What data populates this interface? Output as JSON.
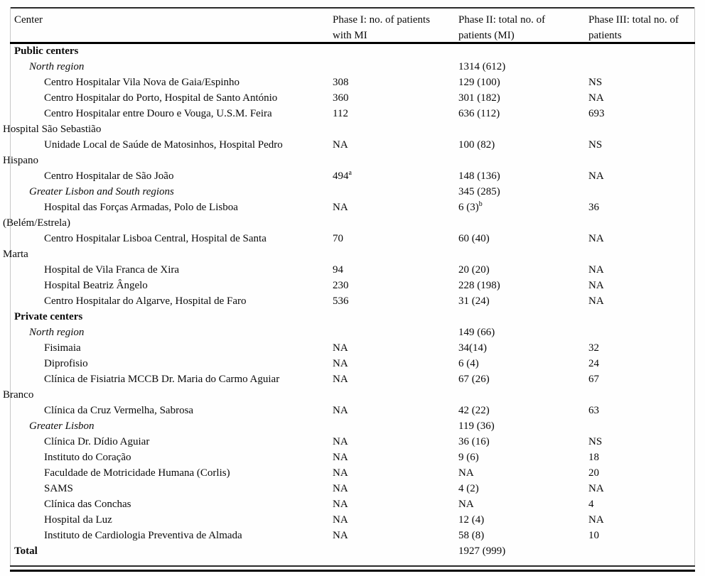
{
  "table": {
    "columns": [
      [
        "Center"
      ],
      [
        "Phase I: no. of patients",
        "with MI"
      ],
      [
        "Phase II: total no. of",
        "patients (MI)"
      ],
      [
        "Phase III: total no. of",
        "patients"
      ]
    ],
    "rows": [
      {
        "type": "section",
        "name_lines": [
          "Public centers"
        ]
      },
      {
        "type": "region",
        "name_lines": [
          "North region"
        ],
        "p2": "1314 (612)"
      },
      {
        "type": "center",
        "name_lines": [
          "Centro Hospitalar Vila Nova de Gaia/Espinho"
        ],
        "p1": "308",
        "p2": "129 (100)",
        "p3": "NS"
      },
      {
        "type": "center",
        "name_lines": [
          "Centro Hospitalar do Porto, Hospital de Santo António"
        ],
        "p1": "360",
        "p2": "301 (182)",
        "p3": "NA"
      },
      {
        "type": "center",
        "name_lines": [
          "Centro Hospitalar entre Douro e Vouga, U.S.M. Feira",
          "Hospital São Sebastião"
        ],
        "p1": "112",
        "p2": "636 (112)",
        "p3": "693"
      },
      {
        "type": "center",
        "name_lines": [
          "Unidade Local de Saúde de Matosinhos, Hospital Pedro",
          "Hispano"
        ],
        "p1": "NA",
        "p2": "100 (82)",
        "p3": "NS"
      },
      {
        "type": "center",
        "name_lines": [
          "Centro Hospitalar de São João"
        ],
        "p1": "494",
        "p1_sup": "a",
        "p2": "148 (136)",
        "p3": "NA"
      },
      {
        "type": "region",
        "name_lines": [
          "Greater Lisbon and South regions"
        ],
        "p2": "345 (285)"
      },
      {
        "type": "center",
        "name_lines": [
          "Hospital das Forças Armadas, Polo de Lisboa",
          "(Belém/Estrela)"
        ],
        "p1": "NA",
        "p2": "6 (3)",
        "p2_sup": "b",
        "p3": "36"
      },
      {
        "type": "center",
        "name_lines": [
          "Centro Hospitalar Lisboa Central, Hospital de Santa",
          "Marta"
        ],
        "p1": "70",
        "p2": "60 (40)",
        "p3": "NA"
      },
      {
        "type": "center",
        "name_lines": [
          "Hospital de Vila Franca de Xira"
        ],
        "p1": "94",
        "p2": "20 (20)",
        "p3": "NA"
      },
      {
        "type": "center",
        "name_lines": [
          "Hospital Beatriz Ângelo"
        ],
        "p1": "230",
        "p2": "228 (198)",
        "p3": "NA"
      },
      {
        "type": "center",
        "name_lines": [
          "Centro Hospitalar do Algarve, Hospital de Faro"
        ],
        "p1": "536",
        "p2": "31 (24)",
        "p3": "NA"
      },
      {
        "type": "section",
        "name_lines": [
          "Private centers"
        ]
      },
      {
        "type": "region",
        "name_lines": [
          "North region"
        ],
        "p2": "149 (66)"
      },
      {
        "type": "center",
        "name_lines": [
          "Fisimaia"
        ],
        "p1": "NA",
        "p2": "34(14)",
        "p3": "32"
      },
      {
        "type": "center",
        "name_lines": [
          "Diprofisio"
        ],
        "p1": "NA",
        "p2": "6 (4)",
        "p3": "24"
      },
      {
        "type": "center",
        "name_lines": [
          "Clínica de Fisiatria MCCB Dr. Maria do Carmo Aguiar",
          "Branco"
        ],
        "p1": "NA",
        "p2": "67 (26)",
        "p3": "67"
      },
      {
        "type": "center",
        "name_lines": [
          "Clínica da Cruz Vermelha, Sabrosa"
        ],
        "p1": "NA",
        "p2": "42 (22)",
        "p3": "63"
      },
      {
        "type": "region",
        "name_lines": [
          "Greater Lisbon"
        ],
        "p2": "119 (36)"
      },
      {
        "type": "center",
        "name_lines": [
          "Clínica Dr. Dídio Aguiar"
        ],
        "p1": "NA",
        "p2": "36 (16)",
        "p3": "NS"
      },
      {
        "type": "center",
        "name_lines": [
          "Instituto do Coração"
        ],
        "p1": "NA",
        "p2": "9 (6)",
        "p3": "18"
      },
      {
        "type": "center",
        "name_lines": [
          "Faculdade de Motricidade Humana (Corlis)"
        ],
        "p1": "NA",
        "p2": "NA",
        "p3": "20"
      },
      {
        "type": "center",
        "name_lines": [
          "SAMS"
        ],
        "p1": "NA",
        "p2": "4 (2)",
        "p3": "NA"
      },
      {
        "type": "center",
        "name_lines": [
          "Clínica das Conchas"
        ],
        "p1": "NA",
        "p2": "NA",
        "p3": "4"
      },
      {
        "type": "center",
        "name_lines": [
          "Hospital da Luz"
        ],
        "p1": "NA",
        "p2": "12 (4)",
        "p3": "NA"
      },
      {
        "type": "center",
        "name_lines": [
          "Instituto de Cardiologia Preventiva de Almada"
        ],
        "p1": "NA",
        "p2": "58 (8)",
        "p3": "10"
      },
      {
        "type": "total",
        "name_lines": [
          "Total"
        ],
        "p2": "1927 (999)"
      }
    ]
  }
}
